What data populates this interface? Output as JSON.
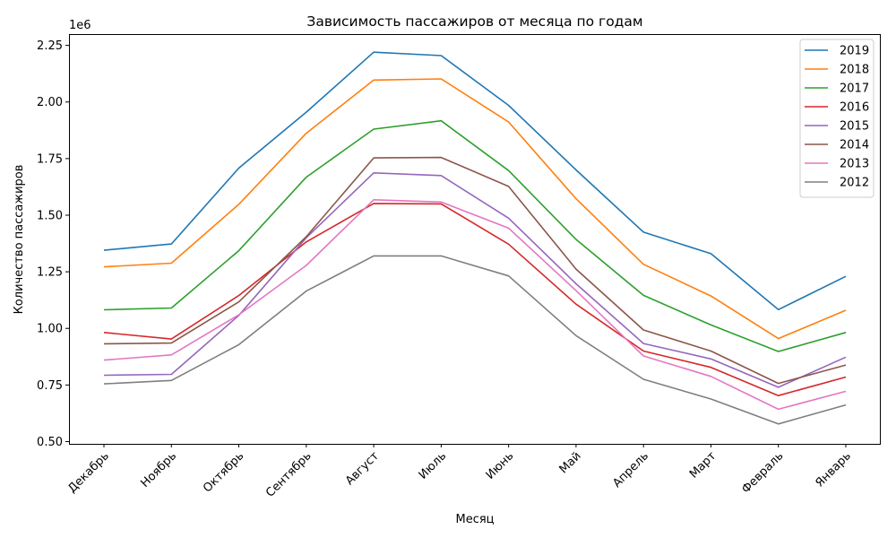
{
  "chart_data": {
    "type": "line",
    "title": "Зависимость пассажиров от месяца по годам",
    "xlabel": "Месяц",
    "ylabel": "Количество пассажиров",
    "y_offset_label": "1e6",
    "y_scale": 1000000,
    "ylim": [
      0.49,
      2.3
    ],
    "yticks": [
      0.5,
      0.75,
      1.0,
      1.25,
      1.5,
      1.75,
      2.0,
      2.25
    ],
    "ytick_labels": [
      "0.50",
      "0.75",
      "1.00",
      "1.25",
      "1.50",
      "1.75",
      "2.00",
      "2.25"
    ],
    "categories": [
      "Декабрь",
      "Ноябрь",
      "Октябрь",
      "Сентябрь",
      "Август",
      "Июль",
      "Июнь",
      "Май",
      "Апрель",
      "Март",
      "Февраль",
      "Январь"
    ],
    "legend_position": "top-right",
    "grid": false,
    "series": [
      {
        "name": "2019",
        "color": "#1f77b4",
        "values": [
          1.345,
          1.373,
          1.708,
          1.955,
          2.22,
          2.205,
          1.985,
          1.7,
          1.425,
          1.33,
          1.083,
          1.23
        ]
      },
      {
        "name": "2018",
        "color": "#ff7f0e",
        "values": [
          1.272,
          1.288,
          1.548,
          1.862,
          2.097,
          2.102,
          1.912,
          1.573,
          1.283,
          1.143,
          0.955,
          1.08
        ]
      },
      {
        "name": "2017",
        "color": "#2ca02c",
        "values": [
          1.082,
          1.09,
          1.343,
          1.668,
          1.88,
          1.917,
          1.697,
          1.393,
          1.146,
          1.015,
          0.898,
          0.982
        ]
      },
      {
        "name": "2016",
        "color": "#d62728",
        "values": [
          0.982,
          0.953,
          1.145,
          1.382,
          1.552,
          1.55,
          1.372,
          1.107,
          0.9,
          0.828,
          0.703,
          0.785
        ]
      },
      {
        "name": "2015",
        "color": "#9467bd",
        "values": [
          0.793,
          0.797,
          1.057,
          1.4,
          1.687,
          1.675,
          1.487,
          1.197,
          0.933,
          0.865,
          0.74,
          0.873
        ]
      },
      {
        "name": "2014",
        "color": "#8c564b",
        "values": [
          0.932,
          0.935,
          1.117,
          1.405,
          1.753,
          1.755,
          1.627,
          1.262,
          0.993,
          0.9,
          0.757,
          0.838
        ]
      },
      {
        "name": "2013",
        "color": "#e377c2",
        "values": [
          0.86,
          0.883,
          1.06,
          1.278,
          1.568,
          1.558,
          1.443,
          1.167,
          0.878,
          0.788,
          0.643,
          0.722
        ]
      },
      {
        "name": "2012",
        "color": "#7f7f7f",
        "values": [
          0.755,
          0.77,
          0.928,
          1.165,
          1.32,
          1.32,
          1.232,
          0.968,
          0.775,
          0.688,
          0.578,
          0.662
        ]
      }
    ]
  }
}
